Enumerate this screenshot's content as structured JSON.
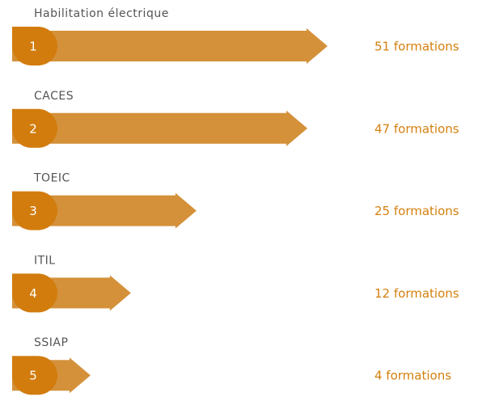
{
  "chart_data": {
    "type": "bar",
    "orientation": "horizontal",
    "categories": [
      "Habilitation électrique",
      "CACES",
      "TOEIC",
      "ITIL",
      "SSIAP"
    ],
    "ranks": [
      1,
      2,
      3,
      4,
      5
    ],
    "values": [
      51,
      47,
      25,
      12,
      4
    ],
    "value_labels": [
      "51 formations",
      "47 formations",
      "25 formations",
      "12 formations",
      "4 formations"
    ],
    "color": "#d4913a",
    "badge_color": "#d27c0e",
    "label_color": "#d4800e"
  }
}
